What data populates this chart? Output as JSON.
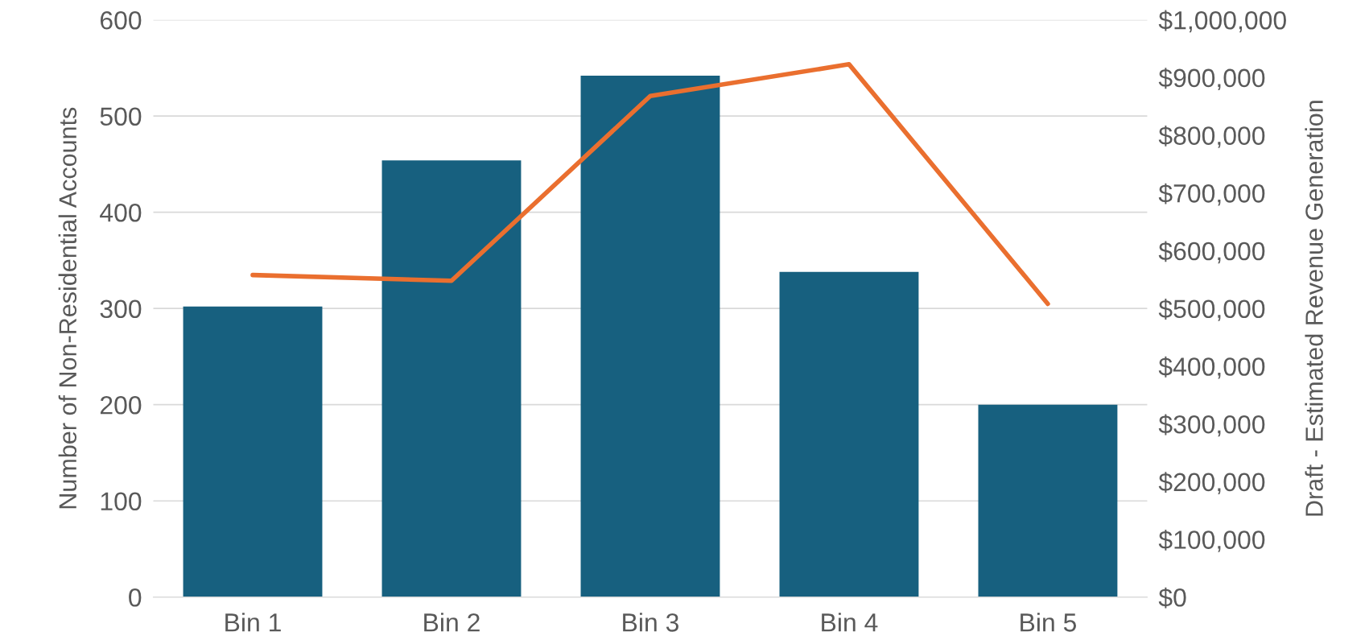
{
  "chart_data": {
    "type": "bar",
    "categories": [
      "Bin 1",
      "Bin 2",
      "Bin 3",
      "Bin 4",
      "Bin 5"
    ],
    "ylabel": "Number of Non-Residential Accounts",
    "y2label": "Draft - Estimated Revenue Generation",
    "series": [
      {
        "color": "#17607f",
        "values": [
          302,
          454,
          542,
          338,
          200
        ]
      },
      {
        "type": "line",
        "axis": "y2",
        "color": "#ea6f2f",
        "values": [
          558000,
          548000,
          868000,
          923000,
          508000
        ]
      }
    ],
    "ylim": [
      0,
      600
    ],
    "yticks": [
      0,
      100,
      200,
      300,
      400,
      500,
      600
    ],
    "y2lim": [
      0,
      1000000
    ],
    "y2ticks": [
      {
        "value": 0,
        "label": "$0"
      },
      {
        "value": 100000,
        "label": "$100,000"
      },
      {
        "value": 200000,
        "label": "$200,000"
      },
      {
        "value": 300000,
        "label": "$300,000"
      },
      {
        "value": 400000,
        "label": "$400,000"
      },
      {
        "value": 500000,
        "label": "$500,000"
      },
      {
        "value": 600000,
        "label": "$600,000"
      },
      {
        "value": 700000,
        "label": "$700,000"
      },
      {
        "value": 800000,
        "label": "$800,000"
      },
      {
        "value": 900000,
        "label": "$900,000"
      },
      {
        "value": 1000000,
        "label": "$1,000,000"
      }
    ],
    "grid": "y"
  }
}
